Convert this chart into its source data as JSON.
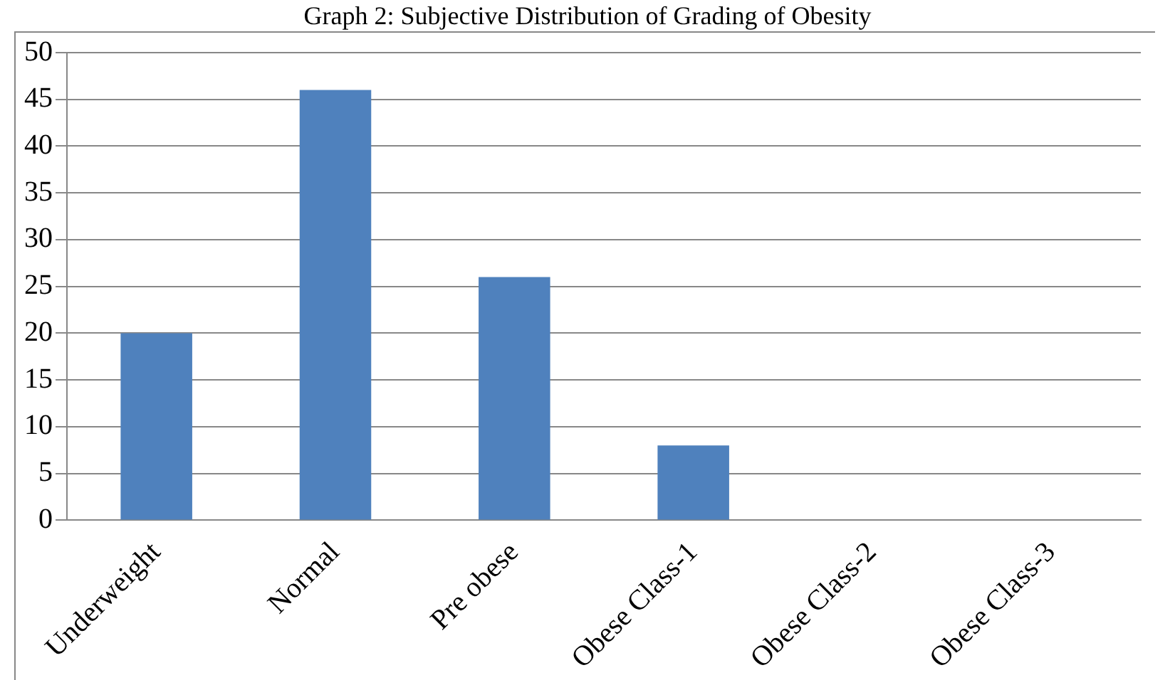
{
  "chart_data": {
    "type": "bar",
    "title": "Graph 2: Subjective Distribution of Grading of Obesity",
    "categories": [
      "Underweight",
      "Normal",
      "Pre obese",
      "Obese Class-1",
      "Obese Class-2",
      "Obese Class-3"
    ],
    "values": [
      20,
      46,
      26,
      8,
      0,
      0
    ],
    "color": "#4f81bd",
    "ylim": [
      0,
      50
    ],
    "yticks": [
      0,
      5,
      10,
      15,
      20,
      25,
      30,
      35,
      40,
      45,
      50
    ],
    "grid": "y"
  }
}
